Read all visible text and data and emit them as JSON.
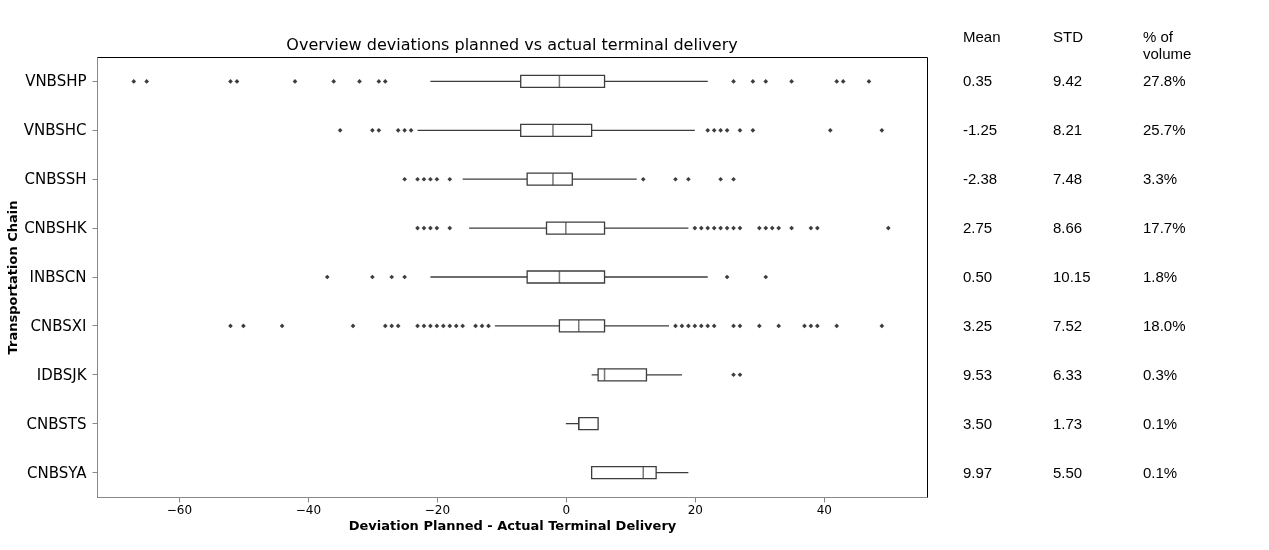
{
  "chart_data": {
    "type": "box",
    "orientation": "horizontal",
    "title": "Overview deviations planned vs actual terminal delivery",
    "xlabel": "Deviation Planned - Actual Terminal Delivery",
    "ylabel": "Transportation Chain",
    "categories": [
      "VNBSHP",
      "VNBSHC",
      "CNBSSH",
      "CNBSHK",
      "INBSCN",
      "CNBSXI",
      "IDBSJK",
      "CNBSTS",
      "CNBSYA"
    ],
    "boxes": [
      {
        "low": -21,
        "q1": -7,
        "median": -1,
        "q3": 6,
        "high": 22,
        "outliers": [
          -67,
          -65,
          -52,
          -51,
          -42,
          -36,
          -32,
          -29,
          -28,
          26,
          29,
          31,
          35,
          42,
          43,
          47
        ]
      },
      {
        "low": -23,
        "q1": -7,
        "median": -2,
        "q3": 4,
        "high": 20,
        "outliers": [
          -35,
          -30,
          -29,
          -26,
          -25,
          -24,
          22,
          23,
          24,
          25,
          27,
          29,
          41,
          49
        ]
      },
      {
        "low": -16,
        "q1": -6,
        "median": -2,
        "q3": 1,
        "high": 11,
        "outliers": [
          -25,
          -23,
          -22,
          -21,
          -20,
          -18,
          12,
          17,
          19,
          24,
          26
        ]
      },
      {
        "low": -15,
        "q1": -3,
        "median": 0,
        "q3": 6,
        "high": 19,
        "outliers": [
          -23,
          -22,
          -21,
          -20,
          -18,
          20,
          21,
          22,
          23,
          24,
          25,
          26,
          27,
          30,
          31,
          32,
          33,
          35,
          38,
          39,
          50
        ]
      },
      {
        "low": -21,
        "q1": -6,
        "median": -1,
        "q3": 6,
        "high": 22,
        "outliers": [
          -37,
          -30,
          -27,
          -25,
          25,
          31
        ]
      },
      {
        "low": -11,
        "q1": -1,
        "median": 2,
        "q3": 6,
        "high": 16,
        "outliers": [
          -52,
          -50,
          -44,
          -33,
          -28,
          -27,
          -26,
          -23,
          -22,
          -21,
          -20,
          -19,
          -18,
          -17,
          -16,
          -14,
          -13,
          -12,
          17,
          18,
          19,
          20,
          21,
          22,
          23,
          26,
          27,
          30,
          33,
          37,
          38,
          39,
          42,
          49
        ]
      },
      {
        "low": 4,
        "q1": 5,
        "median": 6,
        "q3": 12.5,
        "high": 18,
        "outliers": [
          26,
          27
        ]
      },
      {
        "low": 0,
        "q1": 2,
        "median": 2,
        "q3": 5,
        "high": 5
      },
      {
        "low": 4,
        "q1": 4,
        "median": 12,
        "q3": 14,
        "high": 19
      }
    ],
    "xlim": [
      -72.7,
      56
    ],
    "xticks": [
      -60,
      -40,
      -20,
      0,
      20,
      40
    ],
    "grid": false,
    "marker": "diamond",
    "annotations": [
      "Mean",
      "STD",
      "% of volume",
      "0.35",
      "9.42",
      "27.8%",
      "-1.25",
      "8.21",
      "25.7%",
      "-2.38",
      "7.48",
      "3.3%",
      "2.75",
      "8.66",
      "17.7%",
      "0.50",
      "10.15",
      "1.8%",
      "3.25",
      "7.52",
      "18.0%",
      "9.53",
      "6.33",
      "0.3%",
      "3.50",
      "1.73",
      "0.1%",
      "9.97",
      "5.50",
      "0.1%"
    ]
  }
}
